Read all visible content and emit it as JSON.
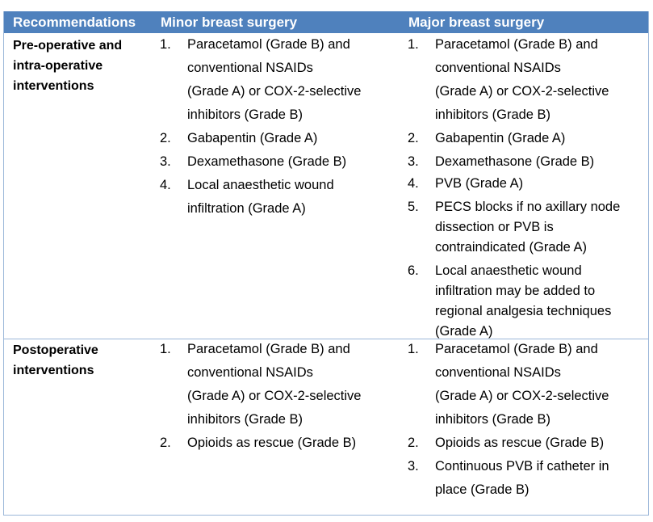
{
  "headers": {
    "c1": "Recommendations",
    "c2": "Minor breast surgery",
    "c3": "Major breast surgery"
  },
  "rows": [
    {
      "label": [
        "Pre-operative and",
        "intra-operative",
        "interventions"
      ],
      "minor": [
        {
          "n": "1.",
          "lines": [
            "Paracetamol (Grade B) and",
            "conventional NSAIDs",
            "(Grade A) or COX-2-selective",
            "inhibitors (Grade B)"
          ]
        },
        {
          "n": "2.",
          "lines": [
            "Gabapentin (Grade A)"
          ]
        },
        {
          "n": "3.",
          "lines": [
            "Dexamethasone (Grade B)"
          ]
        },
        {
          "n": "4.",
          "lines": [
            "Local anaesthetic wound",
            "infiltration (Grade A)"
          ]
        }
      ],
      "major": [
        {
          "n": "1.",
          "lines": [
            "Paracetamol (Grade B) and",
            "conventional NSAIDs",
            "(Grade A) or COX-2-selective",
            "inhibitors (Grade B)"
          ]
        },
        {
          "n": "2.",
          "lines": [
            "Gabapentin (Grade A)"
          ]
        },
        {
          "n": "3.",
          "lines": [
            "Dexamethasone (Grade B)"
          ]
        },
        {
          "n": "4.",
          "lines": [
            "PVB (Grade A)"
          ]
        },
        {
          "n": "5.",
          "lines": [
            "PECS blocks if no axillary node",
            "dissection or PVB is",
            "contraindicated (Grade A)"
          ]
        },
        {
          "n": "6.",
          "lines": [
            "Local anaesthetic wound",
            "infiltration may be added to",
            "regional analgesia techniques",
            "(Grade A)"
          ]
        }
      ]
    },
    {
      "label": [
        "Postoperative",
        "interventions"
      ],
      "minor": [
        {
          "n": "1.",
          "lines": [
            "Paracetamol (Grade B) and",
            "conventional NSAIDs",
            "(Grade A) or COX-2-selective",
            "inhibitors (Grade B)"
          ]
        },
        {
          "n": "2.",
          "lines": [
            "Opioids as rescue (Grade B)"
          ]
        }
      ],
      "major": [
        {
          "n": "1.",
          "lines": [
            "Paracetamol (Grade B) and",
            "conventional NSAIDs",
            "(Grade A) or COX-2-selective",
            "inhibitors (Grade B)"
          ]
        },
        {
          "n": "2.",
          "lines": [
            "Opioids as rescue (Grade B)"
          ]
        },
        {
          "n": "3.",
          "lines": [
            "Continuous PVB if catheter in",
            "place (Grade B)"
          ]
        }
      ]
    }
  ]
}
